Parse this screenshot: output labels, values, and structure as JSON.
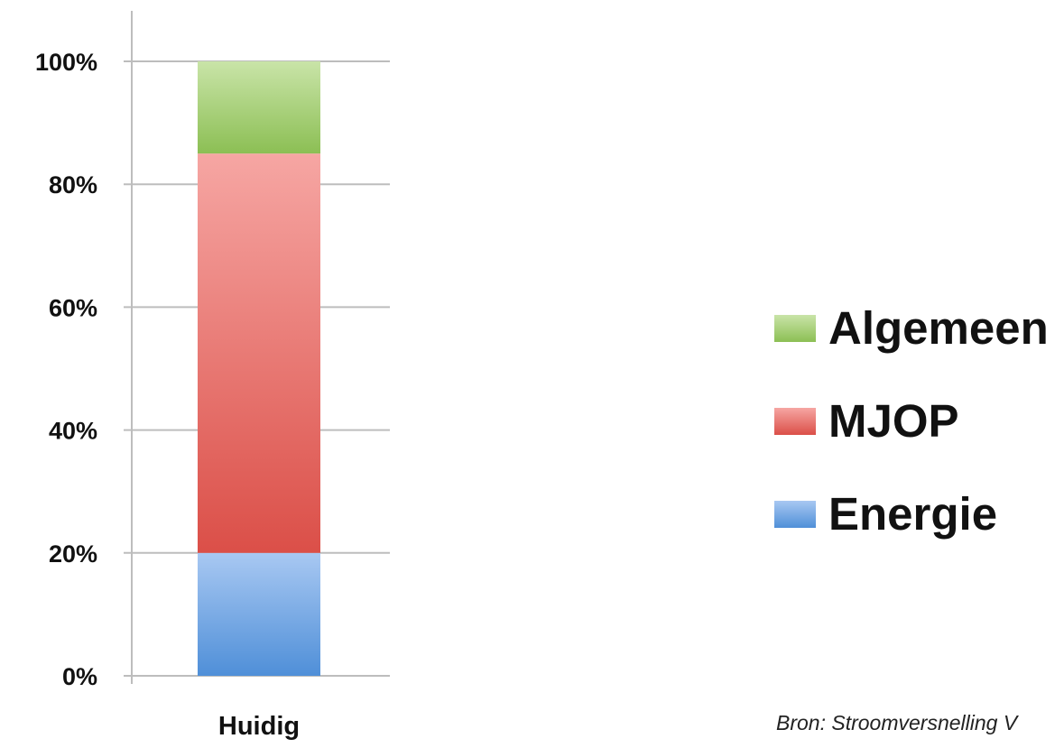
{
  "chart_data": {
    "type": "bar",
    "stacked": true,
    "categories": [
      "Huidig"
    ],
    "series": [
      {
        "name": "Energie",
        "values": [
          20
        ],
        "color": "#6fa6e6"
      },
      {
        "name": "MJOP",
        "values": [
          65
        ],
        "color": "#e8706a"
      },
      {
        "name": "Algemeen",
        "values": [
          15
        ],
        "color": "#a3cc6e"
      }
    ],
    "y_ticks": [
      "0%",
      "20%",
      "40%",
      "60%",
      "80%",
      "100%"
    ],
    "ylim": [
      0,
      100
    ],
    "grid": true,
    "legend_position": "right"
  },
  "legend": [
    {
      "label": "Algemeen",
      "color": "#a3cc6e"
    },
    {
      "label": "MJOP",
      "color": "#e8706a"
    },
    {
      "label": "Energie",
      "color": "#6fa6e6"
    }
  ],
  "source": "Bron: Stroomversnelling V"
}
